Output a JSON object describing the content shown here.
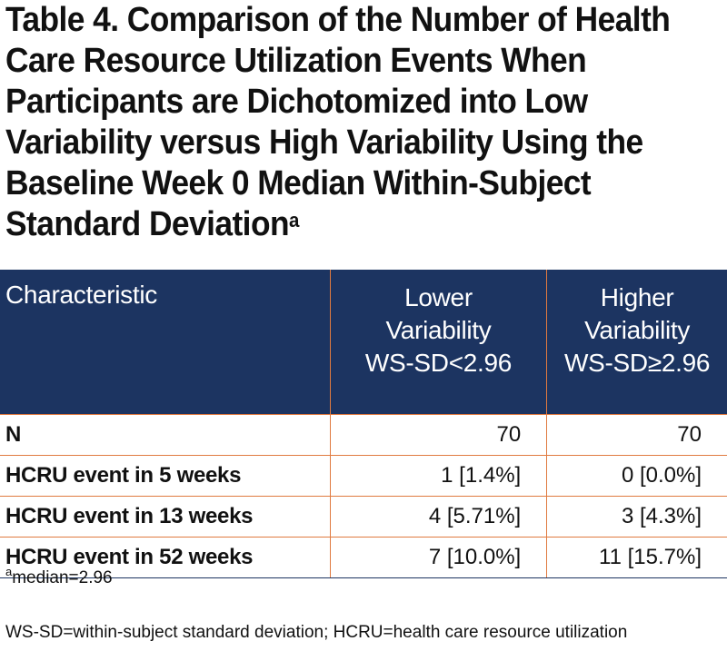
{
  "title": {
    "lines": [
      "Table 4. Comparison of the Number of Health",
      "Care Resource Utilization Events When",
      "Participants are Dichotomized into Low",
      "Variability versus High Variability Using the",
      "Baseline Week 0 Median Within-Subject",
      "Standard Deviation"
    ],
    "superscript": "a"
  },
  "table": {
    "header": {
      "characteristic": "Characteristic",
      "lower": [
        "Lower",
        "Variability",
        "WS-SD<2.96"
      ],
      "higher": [
        "Higher",
        "Variability",
        "WS-SD≥2.96"
      ]
    },
    "rows": [
      {
        "label": "N",
        "lower": "70",
        "higher": "70"
      },
      {
        "label": "HCRU event in 5 weeks",
        "lower": "1 [1.4%]",
        "higher": "0 [0.0%]"
      },
      {
        "label": "HCRU event in 13 weeks",
        "lower": "4 [5.71%]",
        "higher": "3 [4.3%]"
      },
      {
        "label": "HCRU event in 52 weeks",
        "lower": "7 [10.0%]",
        "higher": "11 [15.7%]"
      }
    ]
  },
  "footnote": {
    "marker": "a",
    "text": "median=2.96"
  },
  "abbreviations": "WS-SD=within-subject standard deviation; HCRU=health care resource utilization",
  "colors": {
    "header_bg": "#1c3461",
    "rule": "#e07a40"
  }
}
